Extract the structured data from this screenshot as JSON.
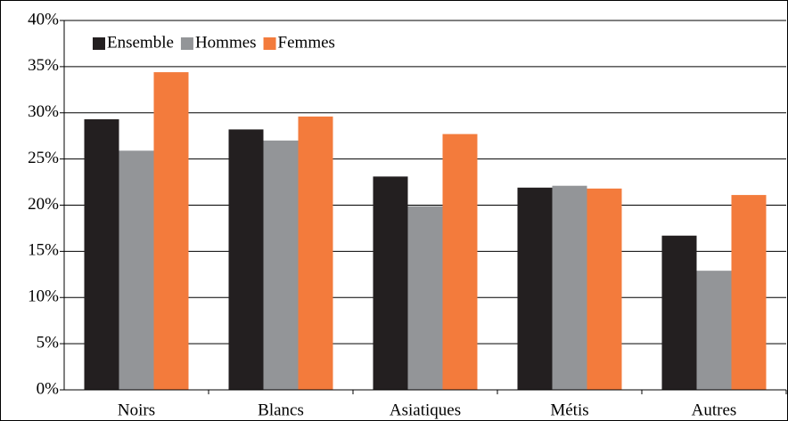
{
  "chart_data": {
    "type": "bar",
    "categories": [
      "Noirs",
      "Blancs",
      "Asiatiques",
      "Métis",
      "Autres"
    ],
    "series": [
      {
        "name": "Ensemble",
        "color": "#231f20",
        "values": [
          29.3,
          28.2,
          23.1,
          21.9,
          16.7
        ]
      },
      {
        "name": "Hommes",
        "color": "#939598",
        "values": [
          25.9,
          27.0,
          19.9,
          22.1,
          12.9
        ]
      },
      {
        "name": "Femmes",
        "color": "#f37b3c",
        "values": [
          34.4,
          29.6,
          27.7,
          21.8,
          21.1
        ]
      }
    ],
    "ylim": [
      0,
      40
    ],
    "yticks": [
      {
        "value": 0,
        "label": "0%"
      },
      {
        "value": 5,
        "label": "5%"
      },
      {
        "value": 10,
        "label": "10%"
      },
      {
        "value": 15,
        "label": "15%"
      },
      {
        "value": 20,
        "label": "20%"
      },
      {
        "value": 25,
        "label": "25%"
      },
      {
        "value": 30,
        "label": "30%"
      },
      {
        "value": 35,
        "label": "35%"
      },
      {
        "value": 40,
        "label": "40%"
      }
    ],
    "grid": true,
    "legend": "top-left"
  }
}
